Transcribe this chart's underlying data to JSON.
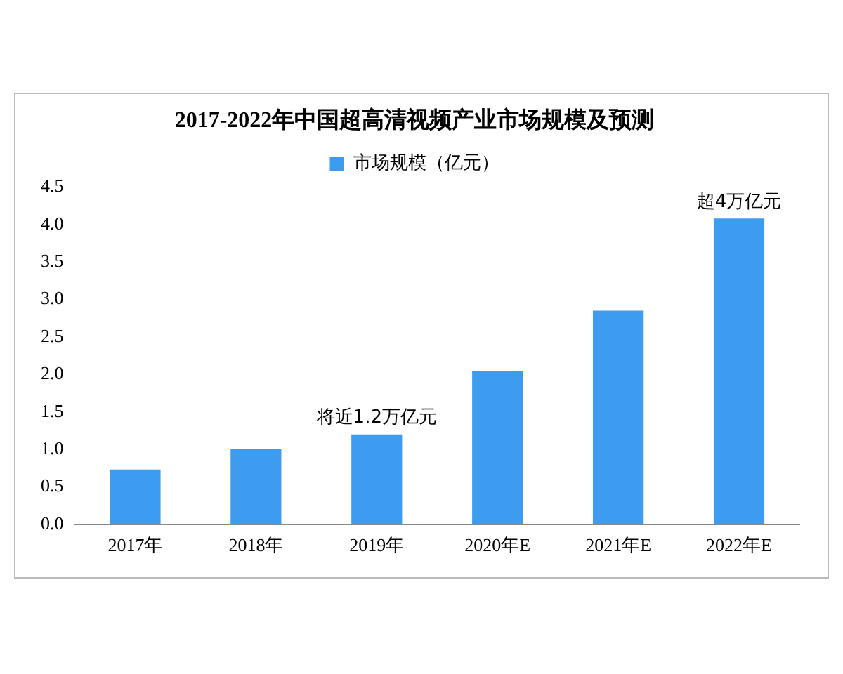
{
  "chart_data": {
    "type": "bar",
    "title": "2017-2022年中国超高清视频产业市场规模及预测",
    "categories": [
      "2017年",
      "2018年",
      "2019年",
      "2020年E",
      "2021年E",
      "2022年E"
    ],
    "series": [
      {
        "name": "市场规模（亿元）",
        "color": "#3d9bf0",
        "values": [
          0.73,
          1.0,
          1.2,
          2.05,
          2.85,
          4.08
        ]
      }
    ],
    "ylim": [
      0,
      4.5
    ],
    "yticks": [
      {
        "value": 0,
        "label": "0.0"
      },
      {
        "value": 0.5,
        "label": "0.5"
      },
      {
        "value": 1,
        "label": "1.0"
      },
      {
        "value": 1.5,
        "label": "1.5"
      },
      {
        "value": 2,
        "label": "2.0"
      },
      {
        "value": 2.5,
        "label": "2.5"
      },
      {
        "value": 3,
        "label": "3.0"
      },
      {
        "value": 3.5,
        "label": "3.5"
      },
      {
        "value": 4,
        "label": "4.0"
      },
      {
        "value": 4.5,
        "label": "4.5"
      }
    ],
    "grid": false,
    "legend": "top",
    "annotations": [
      {
        "text": "将近1.2万亿元",
        "x": "2019年",
        "y": 1.2
      },
      {
        "text": "超4万亿元",
        "x": "2022年E",
        "y": 4.08
      }
    ]
  }
}
